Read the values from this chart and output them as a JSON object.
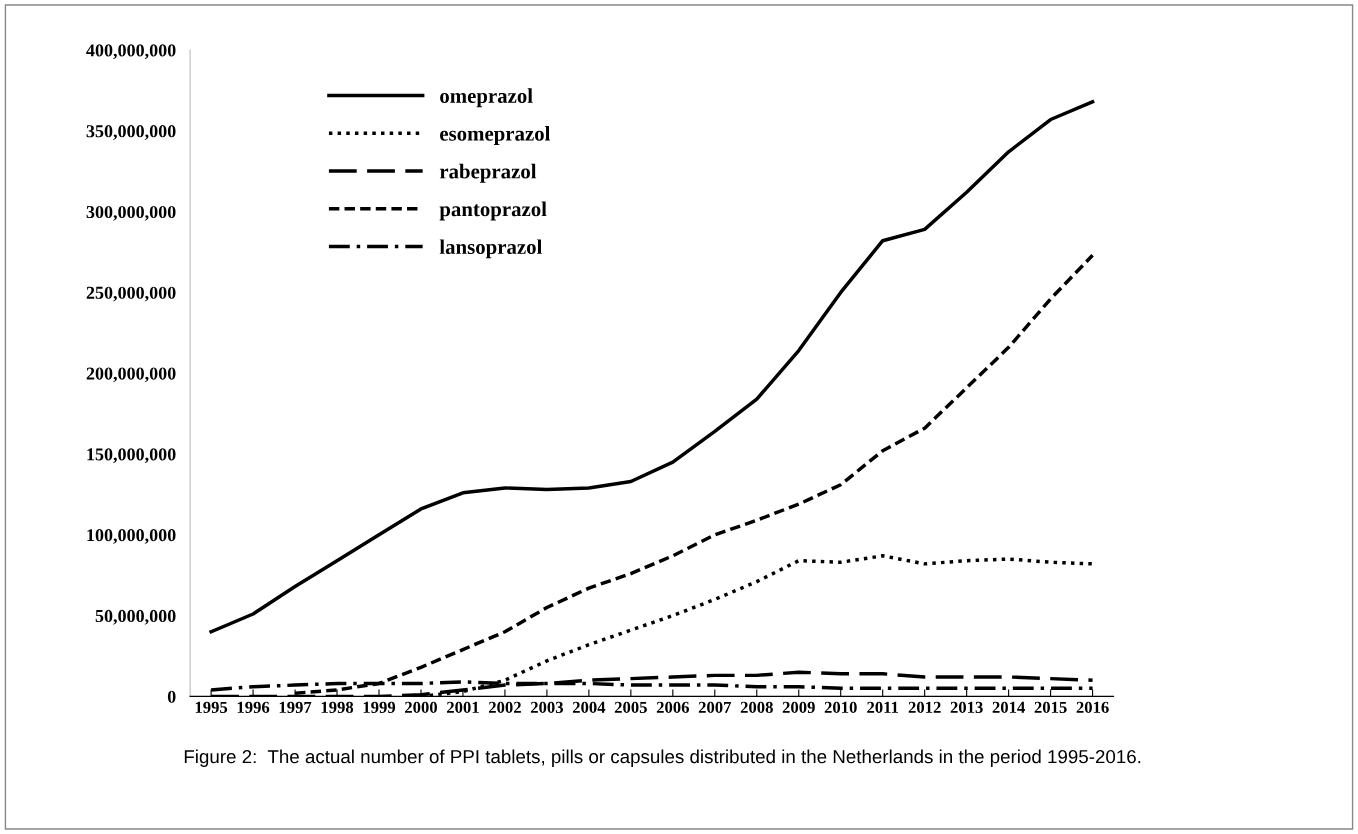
{
  "chart_data": {
    "type": "line",
    "categories": [
      "1995",
      "1996",
      "1997",
      "1998",
      "1999",
      "2000",
      "2001",
      "2002",
      "2003",
      "2004",
      "2005",
      "2006",
      "2007",
      "2008",
      "2009",
      "2010",
      "2011",
      "2012",
      "2013",
      "2014",
      "2015",
      "2016"
    ],
    "series": [
      {
        "name": "omeprazol",
        "color": "#000000",
        "line_style": "solid",
        "values": [
          40000000,
          51000000,
          68000000,
          84000000,
          100000000,
          116000000,
          126000000,
          129000000,
          128000000,
          129000000,
          133000000,
          145000000,
          164000000,
          184000000,
          214000000,
          250000000,
          282000000,
          289000000,
          312000000,
          337000000,
          357000000,
          368000000
        ]
      },
      {
        "name": "esomeprazol",
        "color": "#000000",
        "line_style": "dotted",
        "values": [
          null,
          null,
          null,
          null,
          null,
          0,
          3000000,
          10000000,
          22000000,
          32000000,
          41000000,
          50000000,
          60000000,
          71000000,
          84000000,
          83000000,
          87000000,
          82000000,
          84000000,
          85000000,
          83000000,
          82000000
        ]
      },
      {
        "name": "rabeprazol",
        "color": "#000000",
        "line_style": "longdash",
        "values": [
          0,
          0,
          0,
          0,
          0,
          1000000,
          4000000,
          7000000,
          8000000,
          10000000,
          11000000,
          12000000,
          13000000,
          13000000,
          15000000,
          14000000,
          14000000,
          12000000,
          12000000,
          12000000,
          11000000,
          10000000
        ]
      },
      {
        "name": "pantoprazol",
        "color": "#000000",
        "line_style": "dashed",
        "values": [
          null,
          null,
          2000000,
          4000000,
          8000000,
          18000000,
          29000000,
          40000000,
          55000000,
          67000000,
          76000000,
          87000000,
          100000000,
          109000000,
          119000000,
          131000000,
          152000000,
          166000000,
          191000000,
          216000000,
          246000000,
          273000000
        ]
      },
      {
        "name": "lansoprazol",
        "color": "#000000",
        "line_style": "dashdot",
        "values": [
          4000000,
          6000000,
          7000000,
          8000000,
          8000000,
          8000000,
          9000000,
          8000000,
          8000000,
          8000000,
          7000000,
          7000000,
          7000000,
          6000000,
          6000000,
          5000000,
          5000000,
          5000000,
          5000000,
          5000000,
          5000000,
          5000000
        ]
      }
    ],
    "ylim": [
      0,
      400000000
    ],
    "yticks": [
      {
        "value": 0,
        "label": "0"
      },
      {
        "value": 50000000,
        "label": "50,000,000"
      },
      {
        "value": 100000000,
        "label": "100,000,000"
      },
      {
        "value": 150000000,
        "label": "150,000,000"
      },
      {
        "value": 200000000,
        "label": "200,000,000"
      },
      {
        "value": 250000000,
        "label": "250,000,000"
      },
      {
        "value": 300000000,
        "label": "300,000,000"
      },
      {
        "value": 350000000,
        "label": "350,000,000"
      },
      {
        "value": 400000000,
        "label": "400,000,000"
      }
    ],
    "grid": false,
    "legend": "top left",
    "annotations": [
      "Figure 2:  The actual number of PPI tablets, pills or capsules distributed in the Netherlands in the period 1995-2016."
    ]
  }
}
